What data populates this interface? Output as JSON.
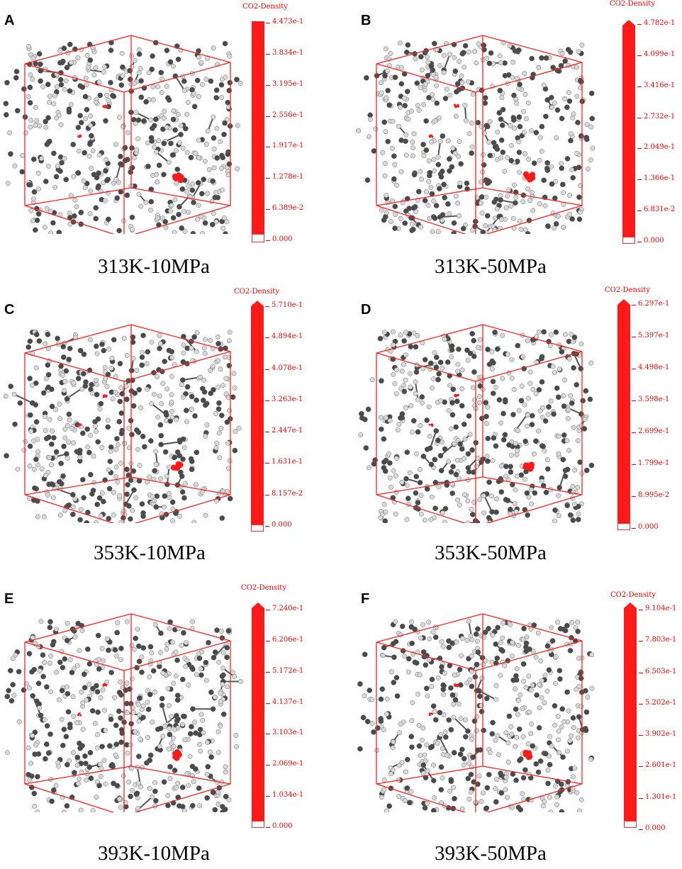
{
  "panels": [
    {
      "letter": "A",
      "colorbar_title": "CO2-Density",
      "ticks": [
        "4.473e-1",
        "3.834e-1",
        "3.195e-1",
        "2.556e-1",
        "1.917e-1",
        "1.278e-1",
        "6.389e-2",
        "0.000"
      ],
      "caption": "313K-10MPa"
    },
    {
      "letter": "B",
      "colorbar_title": "CO2-Density",
      "ticks": [
        "4.782e-1",
        "4.099e-1",
        "3.416e-1",
        "2.732e-1",
        "2.049e-1",
        "1.366e-1",
        "6.831e-2",
        "0.000"
      ],
      "caption": "313K-50MPa"
    },
    {
      "letter": "C",
      "colorbar_title": "CO2-Density",
      "ticks": [
        "5.710e-1",
        "4.894e-1",
        "4.078e-1",
        "3.263e-1",
        "2.447e-1",
        "1.631e-1",
        "8.157e-2",
        "0.000"
      ],
      "caption": "353K-10MPa"
    },
    {
      "letter": "D",
      "colorbar_title": "CO2-Density",
      "ticks": [
        "6.297e-1",
        "5.397e-1",
        "4.498e-1",
        "3.598e-1",
        "2.699e-1",
        "1.799e-1",
        "8.995e-2",
        "0.000"
      ],
      "caption": "353K-50MPa"
    },
    {
      "letter": "E",
      "colorbar_title": "CO2-Density",
      "ticks": [
        "7.240e-1",
        "6.206e-1",
        "5.172e-1",
        "4.137e-1",
        "3.103e-1",
        "2.069e-1",
        "1.034e-1",
        "0.000"
      ],
      "caption": "393K-10MPa"
    },
    {
      "letter": "F",
      "colorbar_title": "CO2-Density",
      "ticks": [
        "9.104e-1",
        "7.803e-1",
        "6.503e-1",
        "5.202e-1",
        "3.902e-1",
        "2.601e-1",
        "1.301e-1",
        "0.000"
      ],
      "caption": "393K-50MPa"
    }
  ],
  "colors": {
    "box": "#ff2020",
    "bar": "#ff1a1a",
    "label": "#ff0000",
    "molecule_dark": "#4a4a4a",
    "molecule_light": "#d8d8d8"
  }
}
